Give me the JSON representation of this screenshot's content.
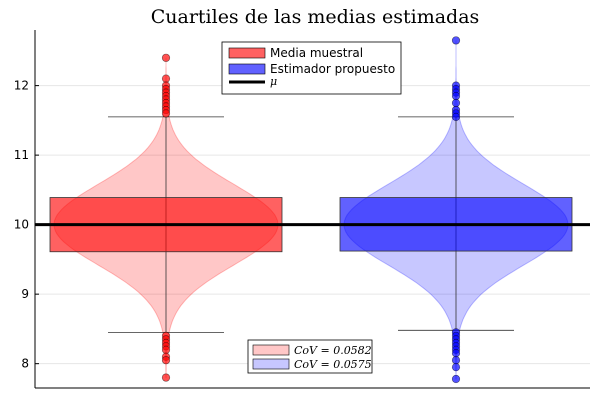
{
  "chart_data": {
    "type": "violin+box",
    "title": "Cuartiles de las medias estimadas",
    "xlabel": "",
    "ylabel": "",
    "ylim": [
      7.65,
      12.8
    ],
    "yticks": [
      8,
      9,
      10,
      11,
      12
    ],
    "grid": true,
    "series": [
      {
        "name": "Media muestral",
        "color": "#ff0000",
        "box": {
          "q1": 9.61,
          "median": 10.0,
          "q3": 10.39,
          "whisker_low": 8.45,
          "whisker_high": 11.55
        },
        "outliers": [
          12.4,
          12.1,
          12.0,
          11.95,
          11.9,
          11.85,
          11.8,
          11.75,
          11.7,
          11.65,
          11.6,
          8.4,
          8.35,
          8.3,
          8.25,
          8.2,
          8.1,
          8.05,
          7.8
        ],
        "cov_label": "CoV = 0.0582"
      },
      {
        "name": "Estimador propuesto",
        "color": "#0000ff",
        "box": {
          "q1": 9.62,
          "median": 10.0,
          "q3": 10.39,
          "whisker_low": 8.48,
          "whisker_high": 11.55
        },
        "outliers": [
          12.65,
          12.0,
          11.95,
          11.9,
          11.85,
          11.75,
          11.65,
          11.6,
          11.55,
          8.45,
          8.4,
          8.35,
          8.3,
          8.25,
          8.2,
          8.15,
          8.05,
          7.95,
          7.78
        ],
        "cov_label": "CoV = 0.0575"
      }
    ],
    "reference_line": {
      "name": "μ",
      "value": 10.0
    },
    "legend_main": [
      "Media muestral",
      "Estimador propuesto",
      "μ"
    ],
    "legend_cov": [
      "CoV = 0.0582",
      "CoV = 0.0575"
    ]
  }
}
